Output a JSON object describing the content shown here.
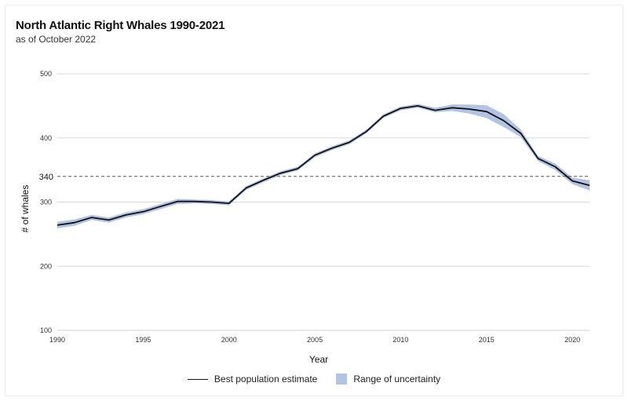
{
  "chart_data": {
    "type": "line",
    "title": "North Atlantic Right Whales 1990-2021",
    "subtitle": "as of October 2022",
    "xlabel": "Year",
    "ylabel": "# of whales",
    "xlim": [
      1990,
      2021
    ],
    "ylim": [
      100,
      500
    ],
    "x_ticks": [
      1990,
      1995,
      2000,
      2005,
      2010,
      2015,
      2020
    ],
    "y_ticks": [
      100,
      200,
      300,
      400,
      500
    ],
    "reference_line": {
      "value": 340,
      "label": "340",
      "style": "dashed"
    },
    "grid": "horizontal",
    "colors": {
      "estimate": "#111111",
      "uncertainty": "#b3c3e4",
      "grid": "#d9d9d9"
    },
    "x": [
      1990,
      1991,
      1992,
      1993,
      1994,
      1995,
      1996,
      1997,
      1998,
      1999,
      2000,
      2001,
      2002,
      2003,
      2004,
      2005,
      2006,
      2007,
      2008,
      2009,
      2010,
      2011,
      2012,
      2013,
      2014,
      2015,
      2016,
      2017,
      2018,
      2019,
      2020,
      2021
    ],
    "series": [
      {
        "name": "Best population estimate",
        "values": [
          264,
          268,
          276,
          272,
          280,
          285,
          293,
          301,
          301,
          300,
          298,
          322,
          334,
          345,
          352,
          373,
          384,
          393,
          410,
          434,
          446,
          450,
          443,
          447,
          445,
          441,
          427,
          407,
          368,
          355,
          333,
          326
        ]
      }
    ],
    "uncertainty": {
      "name": "Range of uncertainty",
      "lower": [
        259,
        263,
        272,
        268,
        276,
        281,
        289,
        297,
        298,
        297,
        295,
        319,
        331,
        342,
        349,
        370,
        381,
        390,
        407,
        431,
        443,
        447,
        440,
        442,
        438,
        431,
        417,
        401,
        364,
        350,
        328,
        318
      ],
      "upper": [
        269,
        273,
        280,
        276,
        284,
        289,
        297,
        305,
        304,
        303,
        301,
        325,
        337,
        348,
        355,
        376,
        387,
        396,
        413,
        437,
        449,
        453,
        447,
        452,
        452,
        451,
        437,
        413,
        372,
        360,
        338,
        334
      ]
    },
    "legend": {
      "placement": "bottom",
      "estimate_label": "Best population estimate",
      "uncertainty_label": "Range of uncertainty"
    }
  }
}
